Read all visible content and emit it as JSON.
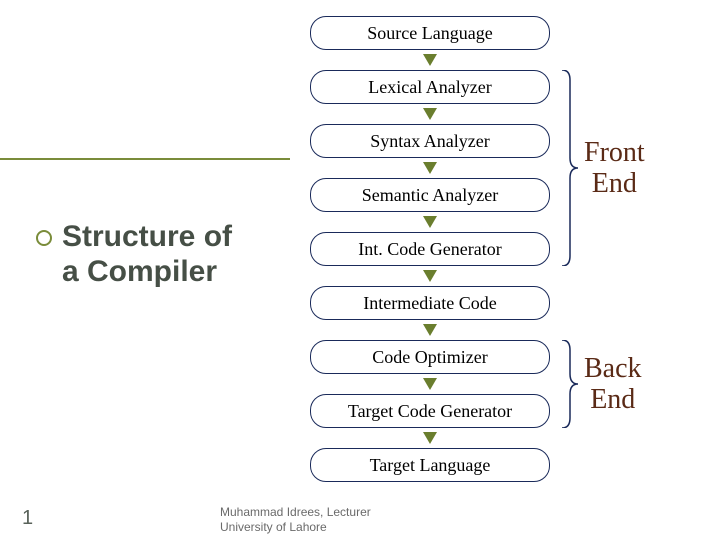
{
  "title": "Structure of a Compiler",
  "accent_color": "#7a8c3a",
  "title_color": "#464f46",
  "arrow_color": "#6a7e2e",
  "box_border_color": "#1a2a5a",
  "bracket_color": "#1a2a5a",
  "label_color": "#5a2a16",
  "underline_color": "#7a8c3a",
  "stages": [
    "Source Language",
    "Lexical Analyzer",
    "Syntax Analyzer",
    "Semantic Analyzer",
    "Int. Code Generator",
    "Intermediate Code",
    "Code Optimizer",
    "Target Code Generator",
    "Target Language"
  ],
  "sections": {
    "front": {
      "label_line1": "Front",
      "label_line2": "End",
      "from_stage": 1,
      "to_stage": 4
    },
    "back": {
      "label_line1": "Back",
      "label_line2": "End",
      "from_stage": 6,
      "to_stage": 7
    }
  },
  "footer": {
    "line1": "Muhammad Idrees, Lecturer",
    "line2": "University of Lahore"
  },
  "slide_number": "1"
}
